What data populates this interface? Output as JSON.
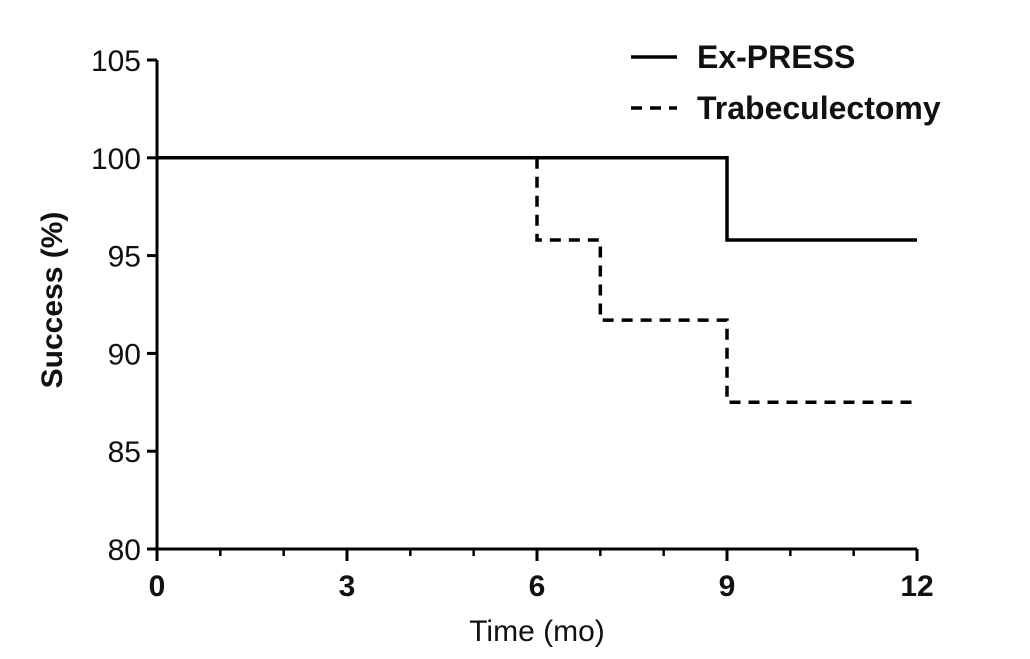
{
  "chart_data": {
    "type": "line",
    "step": true,
    "title": "",
    "xlabel": "Time (mo)",
    "ylabel": "Success (%)",
    "xlim": [
      0,
      12
    ],
    "ylim": [
      80,
      105
    ],
    "x_ticks": [
      0,
      3,
      6,
      9,
      12
    ],
    "x_minor_tick_step": 1,
    "y_ticks": [
      80,
      85,
      90,
      95,
      100,
      105
    ],
    "x_tick_labels": [
      "0",
      "3",
      "6",
      "9",
      "12"
    ],
    "y_tick_labels": [
      "80",
      "85",
      "90",
      "95",
      "100",
      "105"
    ],
    "grid": false,
    "legend_position": "top-right",
    "series": [
      {
        "name": "Ex-PRESS",
        "line_style": "solid",
        "color": "#000000",
        "x": [
          0,
          9,
          12
        ],
        "y": [
          100,
          95.8,
          95.8
        ]
      },
      {
        "name": "Trabeculectomy",
        "line_style": "dashed",
        "color": "#000000",
        "x": [
          0,
          6,
          7,
          9,
          12
        ],
        "y": [
          100,
          95.8,
          91.7,
          87.5,
          87.5
        ]
      }
    ]
  }
}
